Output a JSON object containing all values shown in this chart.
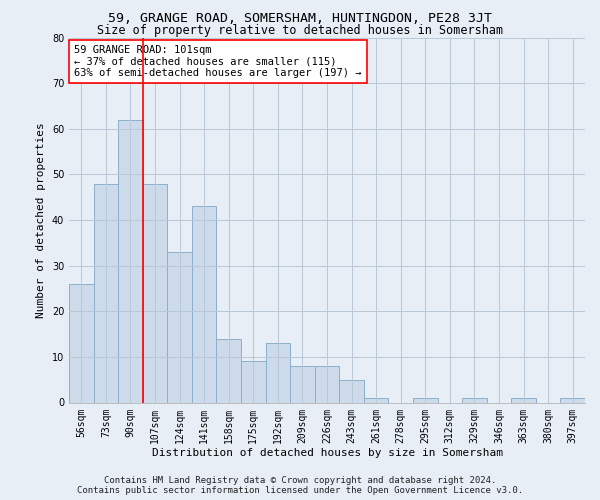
{
  "title": "59, GRANGE ROAD, SOMERSHAM, HUNTINGDON, PE28 3JT",
  "subtitle": "Size of property relative to detached houses in Somersham",
  "xlabel": "Distribution of detached houses by size in Somersham",
  "ylabel": "Number of detached properties",
  "footnote1": "Contains HM Land Registry data © Crown copyright and database right 2024.",
  "footnote2": "Contains public sector information licensed under the Open Government Licence v3.0.",
  "annotation_line1": "59 GRANGE ROAD: 101sqm",
  "annotation_line2": "← 37% of detached houses are smaller (115)",
  "annotation_line3": "63% of semi-detached houses are larger (197) →",
  "bar_labels": [
    "56sqm",
    "73sqm",
    "90sqm",
    "107sqm",
    "124sqm",
    "141sqm",
    "158sqm",
    "175sqm",
    "192sqm",
    "209sqm",
    "226sqm",
    "243sqm",
    "261sqm",
    "278sqm",
    "295sqm",
    "312sqm",
    "329sqm",
    "346sqm",
    "363sqm",
    "380sqm",
    "397sqm"
  ],
  "bar_values": [
    26,
    48,
    62,
    48,
    33,
    43,
    14,
    9,
    13,
    8,
    8,
    5,
    1,
    0,
    1,
    0,
    1,
    0,
    1,
    0,
    1
  ],
  "bar_color": "#ccdaea",
  "bar_edge_color": "#8ab0cc",
  "marker_color": "red",
  "ylim": [
    0,
    80
  ],
  "yticks": [
    0,
    10,
    20,
    30,
    40,
    50,
    60,
    70,
    80
  ],
  "grid_color": "#b8c8d8",
  "background_color": "#e8eef6",
  "annotation_box_color": "white",
  "annotation_box_edge": "red",
  "title_fontsize": 9.5,
  "subtitle_fontsize": 8.5,
  "ylabel_fontsize": 8,
  "xlabel_fontsize": 8,
  "tick_fontsize": 7,
  "annotation_fontsize": 7.5,
  "footnote_fontsize": 6.5
}
